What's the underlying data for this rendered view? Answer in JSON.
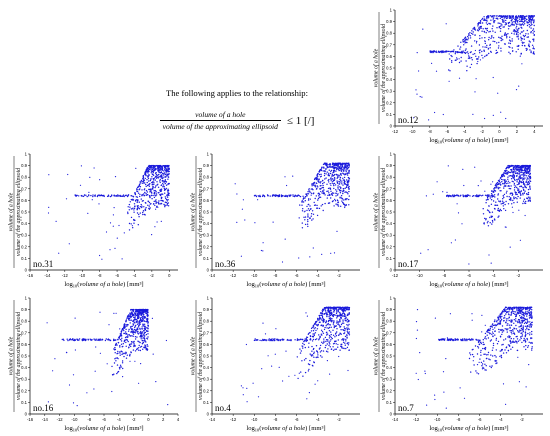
{
  "caption": {
    "intro": "The following applies to the relationship:",
    "numerator": "volume of a hole",
    "denominator": "volume of the approximating ellipsoid",
    "relation": "≤ 1 [/]"
  },
  "chart_data": [
    {
      "type": "scatter",
      "panel_label": "no.12",
      "xlabel": "log10(volume of a hole) [mm³]",
      "ylabel": "volume of a hole / volume of the approximating ellipsoid",
      "xlim": [
        -12,
        5
      ],
      "ylim": [
        0,
        1
      ],
      "xticks": [
        "-12",
        "-10",
        "-8",
        "-6",
        "-4",
        "-2",
        "0",
        "2",
        "4"
      ],
      "yticks": [
        "0",
        "0.1",
        "0.2",
        "0.3",
        "0.4",
        "0.5",
        "0.6",
        "0.7",
        "0.8",
        "0.9",
        "1"
      ],
      "cloud": {
        "x_range": [
          -6,
          4
        ],
        "y_range": [
          0.4,
          0.98
        ],
        "peak_x": -1,
        "peak_y": 0.95
      },
      "plateau": {
        "y": 0.64,
        "x_range": [
          -8,
          -4
        ]
      },
      "color": "#1a1adb"
    },
    {
      "type": "scatter",
      "panel_label": "no.31",
      "xlabel": "log10(volume of a hole) [mm³]",
      "ylabel": "volume of a hole / volume of the approximating ellipsoid",
      "xlim": [
        -16,
        1
      ],
      "ylim": [
        0,
        1
      ],
      "xticks": [
        "-16",
        "-14",
        "-12",
        "-10",
        "-8",
        "-6",
        "-4",
        "-2",
        "0"
      ],
      "yticks": [
        "0",
        "0.1",
        "0.2",
        "0.3",
        "0.4",
        "0.5",
        "0.6",
        "0.7",
        "0.8",
        "0.9",
        "1"
      ],
      "cloud": {
        "x_range": [
          -5,
          0
        ],
        "y_range": [
          0.3,
          0.98
        ],
        "peak_x": -2,
        "peak_y": 0.9
      },
      "plateau": {
        "y": 0.64,
        "x_range": [
          -11,
          -4
        ]
      },
      "color": "#1a1adb"
    },
    {
      "type": "scatter",
      "panel_label": "no.36",
      "xlabel": "log10(volume of a hole) [mm³]",
      "ylabel": "volume of a hole / volume of the approximating ellipsoid",
      "xlim": [
        -14,
        0
      ],
      "ylim": [
        0,
        1
      ],
      "xticks": [
        "-14",
        "-12",
        "-10",
        "-8",
        "-6",
        "-4",
        "-2"
      ],
      "yticks": [
        "0",
        "0.1",
        "0.2",
        "0.3",
        "0.4",
        "0.5",
        "0.6",
        "0.7",
        "0.8",
        "0.9",
        "1"
      ],
      "cloud": {
        "x_range": [
          -6,
          -1
        ],
        "y_range": [
          0.3,
          0.98
        ],
        "peak_x": -3,
        "peak_y": 0.92
      },
      "plateau": {
        "y": 0.64,
        "x_range": [
          -10,
          -5
        ]
      },
      "color": "#1a1adb"
    },
    {
      "type": "scatter",
      "panel_label": "no.17",
      "xlabel": "log10(volume of a hole) [mm³]",
      "ylabel": "volume of a hole / volume of the approximating ellipsoid",
      "xlim": [
        -12,
        0
      ],
      "ylim": [
        0,
        1
      ],
      "xticks": [
        "-12",
        "-10",
        "-8",
        "-6",
        "-4",
        "-2"
      ],
      "yticks": [
        "0",
        "0.1",
        "0.2",
        "0.3",
        "0.4",
        "0.5",
        "0.6",
        "0.7",
        "0.8",
        "0.9",
        "1"
      ],
      "cloud": {
        "x_range": [
          -5,
          -1
        ],
        "y_range": [
          0.35,
          0.98
        ],
        "peak_x": -2.5,
        "peak_y": 0.9
      },
      "plateau": {
        "y": 0.64,
        "x_range": [
          -8,
          -4
        ]
      },
      "color": "#1a1adb"
    },
    {
      "type": "scatter",
      "panel_label": "no.16",
      "xlabel": "log10(volume of a hole) [mm³]",
      "ylabel": "volume of a hole / volume of the approximating ellipsoid",
      "xlim": [
        -16,
        4
      ],
      "ylim": [
        0,
        1
      ],
      "xticks": [
        "-16",
        "-14",
        "-12",
        "-10",
        "-8",
        "-6",
        "-4",
        "-2",
        "0",
        "2",
        "4"
      ],
      "yticks": [
        "0",
        "0.1",
        "0.2",
        "0.3",
        "0.4",
        "0.5",
        "0.6",
        "0.7",
        "0.8",
        "0.9",
        "1"
      ],
      "cloud": {
        "x_range": [
          -5,
          0
        ],
        "y_range": [
          0.3,
          0.98
        ],
        "peak_x": -2,
        "peak_y": 0.9
      },
      "plateau": {
        "y": 0.64,
        "x_range": [
          -12,
          -4
        ]
      },
      "color": "#1a1adb"
    },
    {
      "type": "scatter",
      "panel_label": "no.4",
      "xlabel": "log10(volume of a hole) [mm³]",
      "ylabel": "volume of a hole / volume of the approximating ellipsoid",
      "xlim": [
        -14,
        0
      ],
      "ylim": [
        0,
        1
      ],
      "xticks": [
        "-14",
        "-12",
        "-10",
        "-8",
        "-6",
        "-4",
        "-2"
      ],
      "yticks": [
        "0",
        "0.1",
        "0.2",
        "0.3",
        "0.4",
        "0.5",
        "0.6",
        "0.7",
        "0.8",
        "0.9",
        "1"
      ],
      "cloud": {
        "x_range": [
          -6,
          -1
        ],
        "y_range": [
          0.3,
          0.98
        ],
        "peak_x": -3,
        "peak_y": 0.92
      },
      "plateau": {
        "y": 0.64,
        "x_range": [
          -10,
          -5
        ]
      },
      "color": "#1a1adb"
    },
    {
      "type": "scatter",
      "panel_label": "no.7",
      "xlabel": "log10(volume of a hole) [mm³]",
      "ylabel": "volume of a hole / volume of the approximating ellipsoid",
      "xlim": [
        -14,
        0
      ],
      "ylim": [
        0,
        1
      ],
      "xticks": [
        "-14",
        "-12",
        "-10",
        "-8",
        "-6",
        "-4",
        "-2"
      ],
      "yticks": [
        "0",
        "0.1",
        "0.2",
        "0.3",
        "0.4",
        "0.5",
        "0.6",
        "0.7",
        "0.8",
        "0.9",
        "1"
      ],
      "cloud": {
        "x_range": [
          -7,
          -1
        ],
        "y_range": [
          0.3,
          0.98
        ],
        "peak_x": -3,
        "peak_y": 0.92
      },
      "plateau": {
        "y": 0.64,
        "x_range": [
          -10,
          -6
        ]
      },
      "color": "#1a1adb"
    }
  ]
}
